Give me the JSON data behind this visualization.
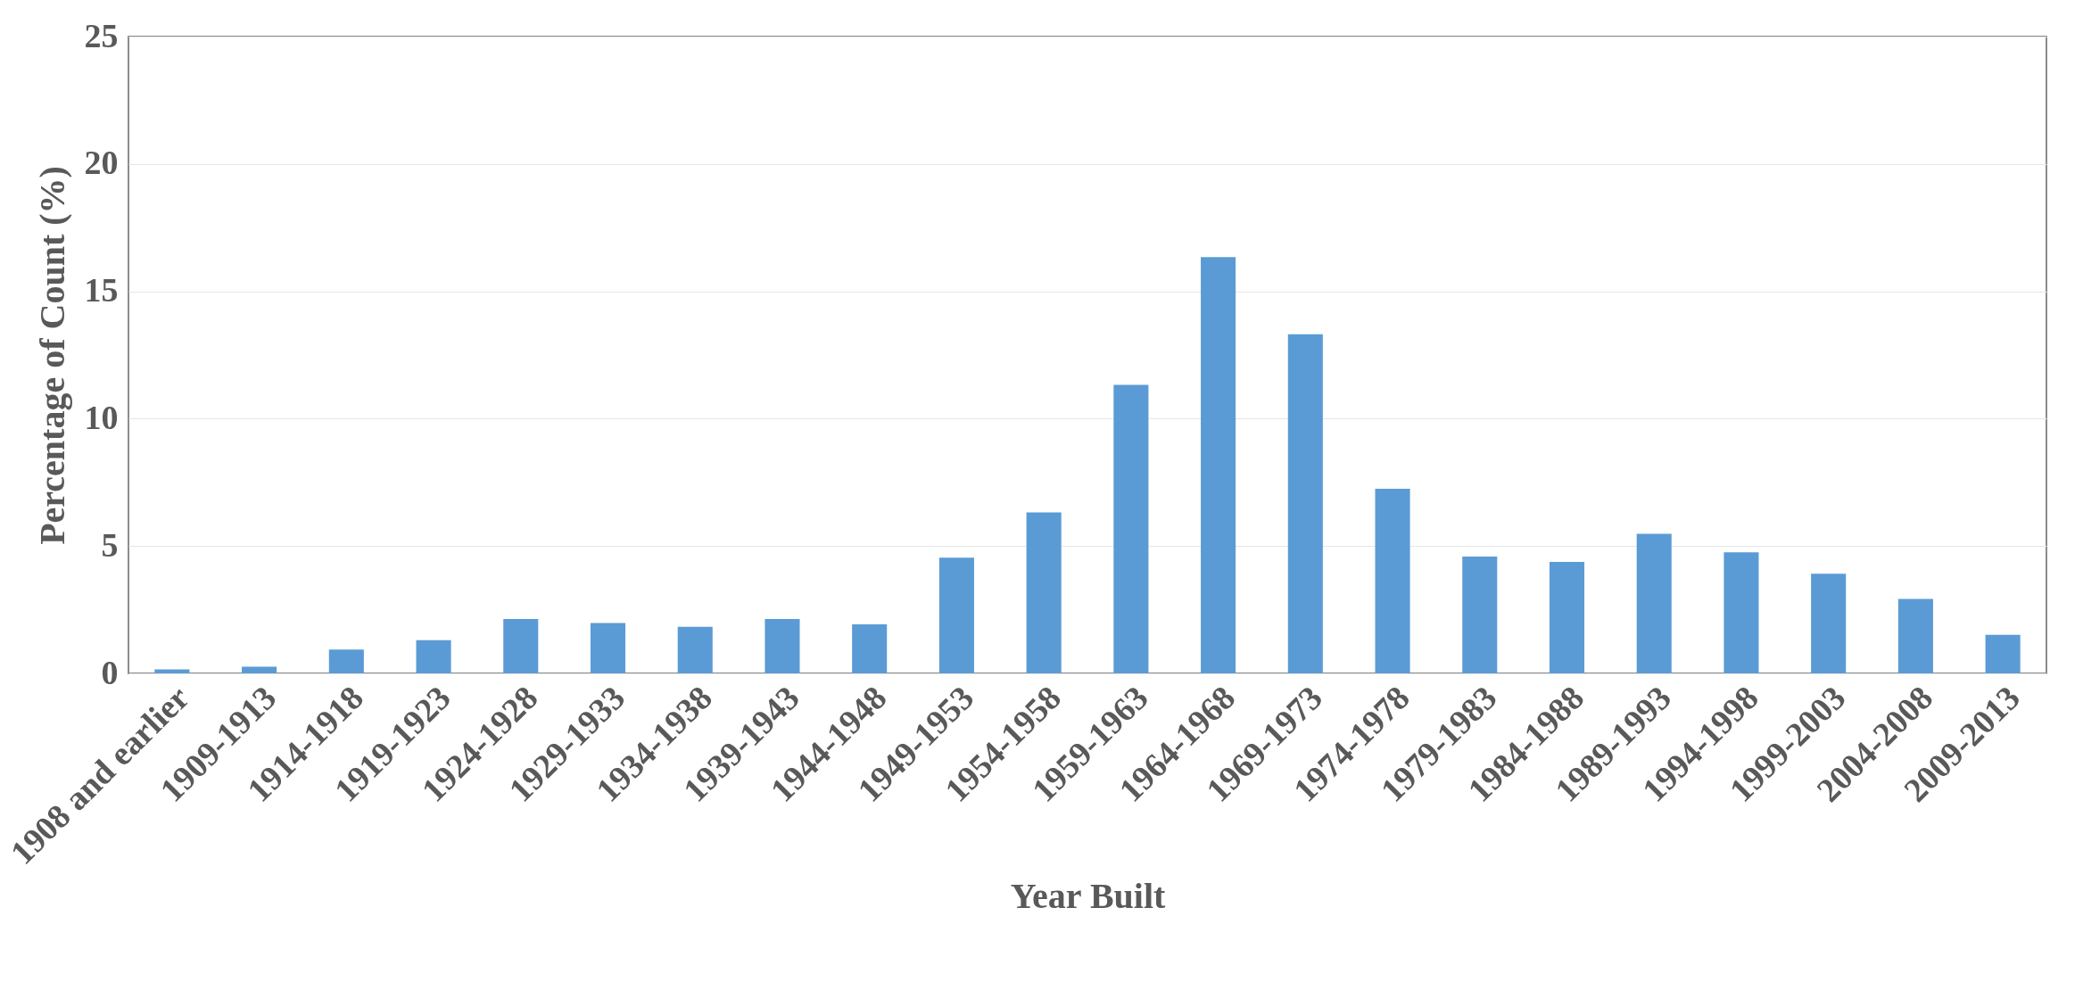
{
  "chart_data": {
    "type": "bar",
    "xlabel": "Year Built",
    "ylabel": "Percentage of Count (%)",
    "categories": [
      "1908 and earlier",
      "1909-1913",
      "1914-1918",
      "1919-1923",
      "1924-1928",
      "1929-1933",
      "1934-1938",
      "1939-1943",
      "1944-1948",
      "1949-1953",
      "1954-1958",
      "1959-1963",
      "1964-1968",
      "1969-1973",
      "1974-1978",
      "1979-1983",
      "1984-1988",
      "1989-1993",
      "1994-1998",
      "1999-2003",
      "2004-2008",
      "2009-2013"
    ],
    "values": [
      0.16,
      0.26,
      0.94,
      1.3,
      2.14,
      1.98,
      1.83,
      2.14,
      1.93,
      4.54,
      6.32,
      11.33,
      16.34,
      13.31,
      7.25,
      4.59,
      4.38,
      5.48,
      4.75,
      3.91,
      2.92,
      1.51
    ],
    "color": "#5b9bd5",
    "ylim": [
      0,
      25
    ],
    "yticks": [
      0,
      5,
      10,
      15,
      20,
      25
    ],
    "grid": "y"
  }
}
